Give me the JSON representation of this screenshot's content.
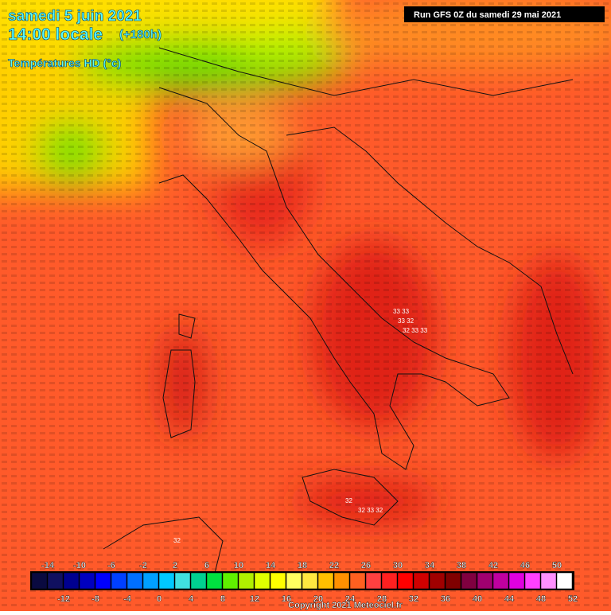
{
  "header": {
    "date": "samedi 5 juin 2021",
    "time": "14:00 locale",
    "lead": "(+180h)",
    "field": "Températures HD (°c)",
    "run": "Run GFS 0Z du samedi 29 mai 2021"
  },
  "map": {
    "labels": [
      "33 33",
      "33 32",
      "32 33 33",
      "32",
      "32 33 32",
      "32"
    ]
  },
  "legend": {
    "range": [
      -16,
      52
    ],
    "labels_top": [
      -14,
      -10,
      -6,
      -2,
      2,
      6,
      10,
      14,
      18,
      22,
      26,
      30,
      34,
      38,
      42,
      46,
      50
    ],
    "labels_bottom": [
      -12,
      -8,
      -4,
      0,
      4,
      8,
      12,
      16,
      20,
      24,
      28,
      32,
      36,
      40,
      44,
      48,
      52
    ],
    "colors": [
      "#0a0a40",
      "#101060",
      "#000090",
      "#0000c0",
      "#0000ff",
      "#0040ff",
      "#0070ff",
      "#00a0ff",
      "#00c8ff",
      "#40e0e0",
      "#00d090",
      "#00e040",
      "#60f000",
      "#b0f000",
      "#e0ff00",
      "#ffff00",
      "#ffff60",
      "#ffe840",
      "#ffc000",
      "#ff9000",
      "#ff6020",
      "#ff4040",
      "#ff2020",
      "#ff0000",
      "#d00000",
      "#a00000",
      "#800000",
      "#800040",
      "#a00070",
      "#c000a0",
      "#e000e0",
      "#ff40ff",
      "#ff90ff",
      "#ffffff"
    ]
  },
  "footer": {
    "copyright": "Copyright 2021 Meteociel.fr"
  }
}
